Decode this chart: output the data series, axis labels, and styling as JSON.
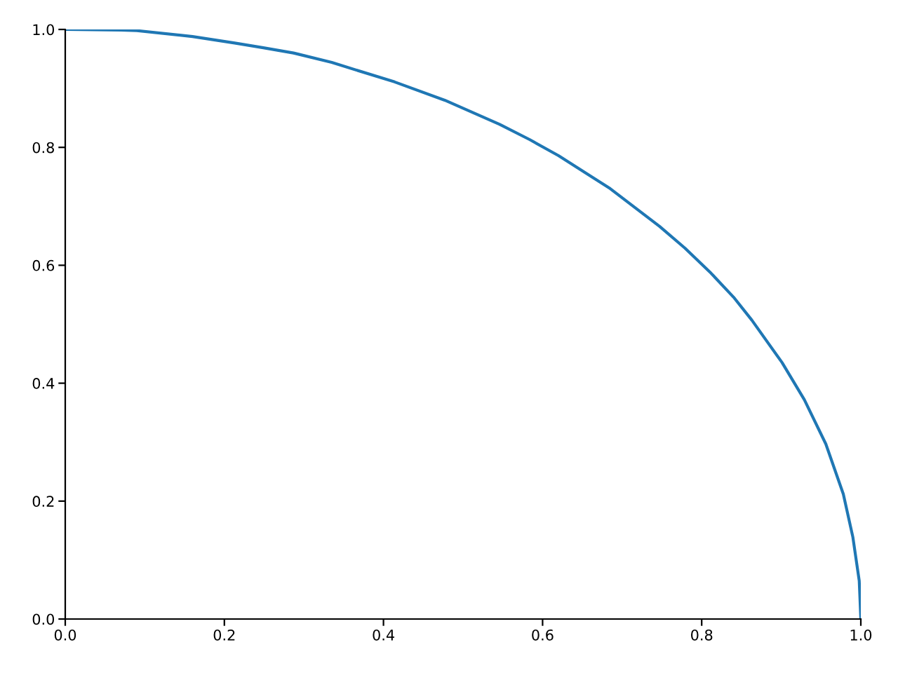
{
  "chart_data": {
    "type": "line",
    "x": [
      0,
      0.07,
      0.09,
      0.16,
      0.213,
      0.249,
      0.287,
      0.335,
      0.414,
      0.477,
      0.546,
      0.584,
      0.62,
      0.685,
      0.747,
      0.779,
      0.81,
      0.84,
      0.863,
      0.901,
      0.929,
      0.956,
      0.978,
      0.99,
      0.998,
      1.0
    ],
    "series": [
      {
        "color": "#1f77b4",
        "values": [
          1,
          0.999,
          0.998,
          0.988,
          0.977,
          0.969,
          0.96,
          0.944,
          0.911,
          0.88,
          0.839,
          0.813,
          0.786,
          0.73,
          0.666,
          0.629,
          0.589,
          0.546,
          0.507,
          0.435,
          0.372,
          0.297,
          0.212,
          0.139,
          0.065,
          0
        ]
      }
    ],
    "xlim": [
      0,
      1
    ],
    "ylim": [
      0,
      1
    ],
    "xticks": [
      {
        "value": 0,
        "label": "0.0"
      },
      0.2,
      0.4,
      0.6,
      0.8,
      {
        "value": 1,
        "label": "1.0"
      }
    ],
    "yticks": [
      {
        "value": 0,
        "label": "0.0"
      },
      0.2,
      0.4,
      0.6,
      0.8,
      {
        "value": 1,
        "label": "1.0"
      }
    ],
    "grid": false,
    "legend": false,
    "marker": "none",
    "line_style": "solid"
  }
}
